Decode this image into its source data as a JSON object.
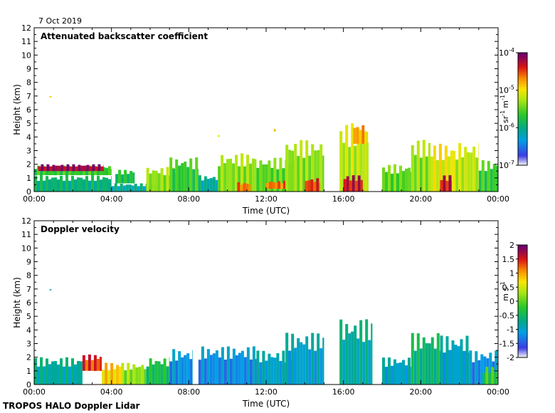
{
  "header": {
    "date": "7 Oct 2019"
  },
  "footer": {
    "text": "TROPOS HALO Doppler Lidar"
  },
  "chart_data": [
    {
      "type": "heatmap",
      "title": "Attenuated backscatter coefficient",
      "xlabel": "Time (UTC)",
      "ylabel": "Height (km)",
      "xticks": [
        "00:00",
        "04:00",
        "08:00",
        "12:00",
        "16:00",
        "20:00",
        "00:00"
      ],
      "xlim": [
        0,
        24
      ],
      "ylim": [
        0,
        12
      ],
      "yticks": [
        0,
        1,
        2,
        3,
        4,
        5,
        6,
        7,
        8,
        9,
        10,
        11,
        12
      ],
      "scale": "log",
      "colorbar": {
        "unit_base": "sr",
        "unit_exp1": "-1",
        "unit_base2": "m",
        "unit_exp2": "-1",
        "ticks": [
          {
            "base": "10",
            "exp": "-7",
            "frac": 0.0
          },
          {
            "base": "10",
            "exp": "-6",
            "frac": 0.333
          },
          {
            "base": "10",
            "exp": "-5",
            "frac": 0.667
          },
          {
            "base": "10",
            "exp": "-4",
            "frac": 1.0
          }
        ]
      },
      "features": [
        {
          "x0": 0.0,
          "x1": 4.0,
          "y0": 0.0,
          "y1": 1.2,
          "level": 0.35
        },
        {
          "x0": 0.0,
          "x1": 4.0,
          "y0": 1.2,
          "y1": 1.9,
          "level": 0.45
        },
        {
          "x0": 0.2,
          "x1": 3.6,
          "y0": 1.5,
          "y1": 2.0,
          "level": 0.95
        },
        {
          "x0": 4.0,
          "x1": 6.5,
          "y0": 0.0,
          "y1": 0.6,
          "level": 0.3
        },
        {
          "x0": 4.2,
          "x1": 5.2,
          "y0": 0.6,
          "y1": 1.6,
          "level": 0.4
        },
        {
          "x0": 5.8,
          "x1": 7.5,
          "y0": 0.0,
          "y1": 1.8,
          "level": 0.55
        },
        {
          "x0": 7.0,
          "x1": 8.5,
          "y0": 0.0,
          "y1": 2.5,
          "level": 0.45
        },
        {
          "x0": 8.5,
          "x1": 9.5,
          "y0": 0.0,
          "y1": 1.2,
          "level": 0.3
        },
        {
          "x0": 9.5,
          "x1": 11.5,
          "y0": 0.0,
          "y1": 2.8,
          "level": 0.55
        },
        {
          "x0": 10.5,
          "x1": 11.2,
          "y0": 0.0,
          "y1": 0.7,
          "level": 0.8
        },
        {
          "x0": 11.5,
          "x1": 13.5,
          "y0": 0.0,
          "y1": 2.5,
          "level": 0.5
        },
        {
          "x0": 12.0,
          "x1": 13.0,
          "y0": 0.2,
          "y1": 0.8,
          "level": 0.8
        },
        {
          "x0": 13.0,
          "x1": 15.0,
          "y0": 0.0,
          "y1": 3.8,
          "level": 0.55
        },
        {
          "x0": 14.0,
          "x1": 14.8,
          "y0": 0.0,
          "y1": 1.0,
          "level": 0.85
        },
        {
          "x0": 15.8,
          "x1": 17.3,
          "y0": 0.0,
          "y1": 5.0,
          "level": 0.6
        },
        {
          "x0": 16.5,
          "x1": 17.2,
          "y0": 3.5,
          "y1": 4.9,
          "level": 0.75
        },
        {
          "x0": 16.0,
          "x1": 17.0,
          "y0": 0.0,
          "y1": 1.2,
          "level": 0.9
        },
        {
          "x0": 18.0,
          "x1": 19.5,
          "y0": 0.0,
          "y1": 2.0,
          "level": 0.5
        },
        {
          "x0": 19.5,
          "x1": 20.5,
          "y0": 0.0,
          "y1": 3.8,
          "level": 0.55
        },
        {
          "x0": 20.5,
          "x1": 21.8,
          "y0": 0.0,
          "y1": 3.5,
          "level": 0.65
        },
        {
          "x0": 21.0,
          "x1": 21.6,
          "y0": 0.0,
          "y1": 1.2,
          "level": 0.9
        },
        {
          "x0": 21.8,
          "x1": 23.0,
          "y0": 0.0,
          "y1": 3.6,
          "level": 0.6
        },
        {
          "x0": 23.0,
          "x1": 24.0,
          "y0": 0.0,
          "y1": 2.3,
          "level": 0.45
        },
        {
          "x0": 0.8,
          "x1": 0.9,
          "y0": 6.9,
          "y1": 7.0,
          "level": 0.7
        },
        {
          "x0": 9.5,
          "x1": 9.6,
          "y0": 4.0,
          "y1": 4.2,
          "level": 0.7
        },
        {
          "x0": 12.4,
          "x1": 12.5,
          "y0": 4.4,
          "y1": 4.6,
          "level": 0.7
        }
      ]
    },
    {
      "type": "heatmap",
      "title": "Doppler velocity",
      "xlabel": "Time (UTC)",
      "ylabel": "Height (km)",
      "xticks": [
        "00:00",
        "04:00",
        "08:00",
        "12:00",
        "16:00",
        "20:00",
        "00:00"
      ],
      "xlim": [
        0,
        24
      ],
      "ylim": [
        0,
        12
      ],
      "yticks": [
        0,
        1,
        2,
        3,
        4,
        5,
        6,
        7,
        8,
        9,
        10,
        11,
        12
      ],
      "colorbar": {
        "unit_base": "m",
        "unit_exp": "-1",
        "unit_s": "s",
        "ticks": [
          {
            "label": "2",
            "value": 2
          },
          {
            "label": "1.5",
            "value": 1.5
          },
          {
            "label": "1",
            "value": 1
          },
          {
            "label": "0.5",
            "value": 0.5
          },
          {
            "label": "0",
            "value": 0
          },
          {
            "label": "-0.5",
            "value": -0.5
          },
          {
            "label": "-1",
            "value": -1
          },
          {
            "label": "-1.5",
            "value": -1.5
          },
          {
            "label": "-2",
            "value": -2
          }
        ]
      },
      "features": [
        {
          "x0": 0.0,
          "x1": 2.5,
          "y0": 0.0,
          "y1": 2.0,
          "level": 0.3
        },
        {
          "x0": 2.5,
          "x1": 3.5,
          "y0": 1.0,
          "y1": 2.2,
          "level": 0.85
        },
        {
          "x0": 3.5,
          "x1": 4.5,
          "y0": 0.0,
          "y1": 1.6,
          "level": 0.7
        },
        {
          "x0": 4.5,
          "x1": 5.8,
          "y0": 0.0,
          "y1": 1.6,
          "level": 0.55
        },
        {
          "x0": 5.8,
          "x1": 7.0,
          "y0": 0.0,
          "y1": 2.0,
          "level": 0.4
        },
        {
          "x0": 7.0,
          "x1": 8.2,
          "y0": 0.0,
          "y1": 2.6,
          "level": 0.2
        },
        {
          "x0": 8.5,
          "x1": 11.5,
          "y0": 0.0,
          "y1": 2.8,
          "level": 0.2
        },
        {
          "x0": 11.5,
          "x1": 13.5,
          "y0": 0.0,
          "y1": 2.5,
          "level": 0.25
        },
        {
          "x0": 13.0,
          "x1": 15.0,
          "y0": 0.0,
          "y1": 3.8,
          "level": 0.25
        },
        {
          "x0": 15.8,
          "x1": 17.5,
          "y0": 0.0,
          "y1": 4.8,
          "level": 0.3
        },
        {
          "x0": 18.0,
          "x1": 19.5,
          "y0": 0.0,
          "y1": 2.0,
          "level": 0.25
        },
        {
          "x0": 19.5,
          "x1": 21.0,
          "y0": 0.0,
          "y1": 3.8,
          "level": 0.35
        },
        {
          "x0": 21.0,
          "x1": 22.5,
          "y0": 0.0,
          "y1": 3.6,
          "level": 0.25
        },
        {
          "x0": 22.5,
          "x1": 24.0,
          "y0": 0.0,
          "y1": 2.5,
          "level": 0.2
        },
        {
          "x0": 23.2,
          "x1": 24.0,
          "y0": 0.0,
          "y1": 1.3,
          "level": 0.45
        },
        {
          "x0": 0.8,
          "x1": 0.9,
          "y0": 6.9,
          "y1": 7.0,
          "level": 0.3
        }
      ]
    }
  ]
}
